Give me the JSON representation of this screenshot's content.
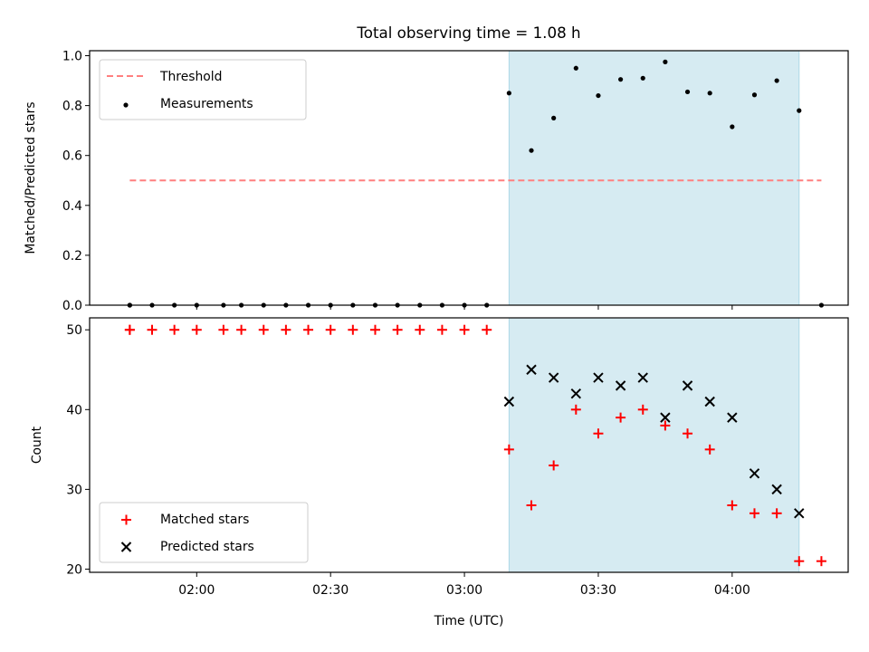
{
  "chart_data": {
    "title": "Total observing time = 1.08 h",
    "xlabel": "Time (UTC)",
    "x_tick_labels": [
      "02:00",
      "02:30",
      "03:00",
      "03:30",
      "04:00"
    ],
    "x_ticks": [
      "02:00",
      "02:30",
      "03:00",
      "03:30",
      "04:00"
    ],
    "xlim": [
      "01:36",
      "04:26"
    ],
    "shaded_interval": {
      "start": "03:10",
      "end": "04:15",
      "color": "#add8e6"
    },
    "panels": [
      {
        "type": "scatter",
        "ylabel": "Matched/Predicted stars",
        "ylim": [
          0,
          1.02
        ],
        "y_ticks": [
          0.0,
          0.2,
          0.4,
          0.6,
          0.8,
          1.0
        ],
        "y_tick_labels": [
          "0.0",
          "0.2",
          "0.4",
          "0.6",
          "0.8",
          "1.0"
        ],
        "legend_position": "upper left",
        "threshold": {
          "name": "Threshold",
          "value": 0.5,
          "x_start": "01:45",
          "x_end": "04:20",
          "color": "#ff7f7f",
          "style": "dashed"
        },
        "series": [
          {
            "name": "Measurements",
            "marker": "dot",
            "color": "#000000",
            "x": [
              "01:45",
              "01:45",
              "01:50",
              "01:55",
              "02:00",
              "02:06",
              "02:10",
              "02:15",
              "02:20",
              "02:25",
              "02:30",
              "02:35",
              "02:40",
              "02:45",
              "02:50",
              "02:55",
              "03:00",
              "03:05",
              "03:10",
              "03:15",
              "03:20",
              "03:25",
              "03:30",
              "03:35",
              "03:40",
              "03:45",
              "03:50",
              "03:55",
              "04:00",
              "04:05",
              "04:10",
              "04:15",
              "04:20"
            ],
            "y": [
              0,
              0,
              0,
              0,
              0,
              0,
              0,
              0,
              0,
              0,
              0,
              0,
              0,
              0,
              0,
              0,
              0,
              0,
              0.85,
              0.62,
              0.75,
              0.95,
              0.84,
              0.905,
              0.91,
              0.975,
              0.855,
              0.85,
              0.715,
              0.843,
              0.9,
              0.78,
              0
            ]
          }
        ]
      },
      {
        "type": "scatter",
        "ylabel": "Count",
        "ylim": [
          19.6,
          51.5
        ],
        "y_ticks": [
          20,
          30,
          40,
          50
        ],
        "y_tick_labels": [
          "20",
          "30",
          "40",
          "50"
        ],
        "legend_position": "lower left",
        "series": [
          {
            "name": "Matched stars",
            "marker": "plus",
            "color": "#ff0000",
            "x": [
              "01:45",
              "01:45",
              "01:50",
              "01:55",
              "02:00",
              "02:06",
              "02:10",
              "02:15",
              "02:20",
              "02:25",
              "02:30",
              "02:35",
              "02:40",
              "02:45",
              "02:50",
              "02:55",
              "03:00",
              "03:05",
              "03:10",
              "03:15",
              "03:20",
              "03:25",
              "03:30",
              "03:35",
              "03:40",
              "03:45",
              "03:50",
              "03:55",
              "04:00",
              "04:05",
              "04:10",
              "04:15",
              "04:20"
            ],
            "y": [
              50,
              50,
              50,
              50,
              50,
              50,
              50,
              50,
              50,
              50,
              50,
              50,
              50,
              50,
              50,
              50,
              50,
              50,
              35,
              28,
              33,
              40,
              37,
              39,
              40,
              38,
              37,
              35,
              28,
              27,
              27,
              21,
              21
            ]
          },
          {
            "name": "Predicted stars",
            "marker": "x",
            "color": "#000000",
            "x": [
              "03:10",
              "03:15",
              "03:20",
              "03:25",
              "03:30",
              "03:35",
              "03:40",
              "03:45",
              "03:50",
              "03:55",
              "04:00",
              "04:05",
              "04:10",
              "04:15"
            ],
            "y": [
              41,
              45,
              44,
              42,
              44,
              43,
              44,
              39,
              43,
              41,
              39,
              32,
              30,
              27
            ]
          }
        ]
      }
    ]
  }
}
